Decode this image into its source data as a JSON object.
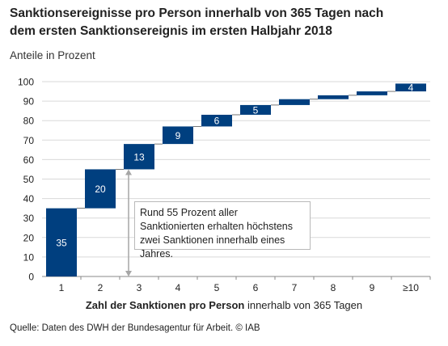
{
  "title_line1": "Sanktionsereignisse pro Person innerhalb von 365 Tagen nach",
  "title_line2": "dem ersten Sanktionsereignis im ersten Halbjahr 2018",
  "subtitle": "Anteile in Prozent",
  "xlabel_bold": "Zahl der Sanktionen pro Person",
  "xlabel_rest": " innerhalb von 365 Tagen",
  "annotation": "Rund 55 Prozent aller Sanktionierten erhalten höchstens zwei Sanktionen innerhalb eines Jahres.",
  "source": "Quelle: Daten des DWH der Bundesagentur für Arbeit.  © IAB",
  "colors": {
    "bar": "#003f7f",
    "grid": "#d9d9d9",
    "axis": "#888888",
    "arrow": "#a6a6a6"
  },
  "chart_data": {
    "type": "bar",
    "subtype": "waterfall",
    "categories": [
      "1",
      "2",
      "3",
      "4",
      "5",
      "6",
      "7",
      "8",
      "9",
      "≥10"
    ],
    "values": [
      35,
      20,
      13,
      9,
      6,
      5,
      3,
      2,
      2,
      4
    ],
    "value_labels": [
      "35",
      "20",
      "13",
      "9",
      "6",
      "5",
      "",
      "",
      "",
      "4"
    ],
    "ylim": [
      0,
      100
    ],
    "yticks": [
      0,
      10,
      20,
      30,
      40,
      50,
      60,
      70,
      80,
      90,
      100
    ],
    "grid": true,
    "arrow_range": [
      0,
      55
    ]
  }
}
